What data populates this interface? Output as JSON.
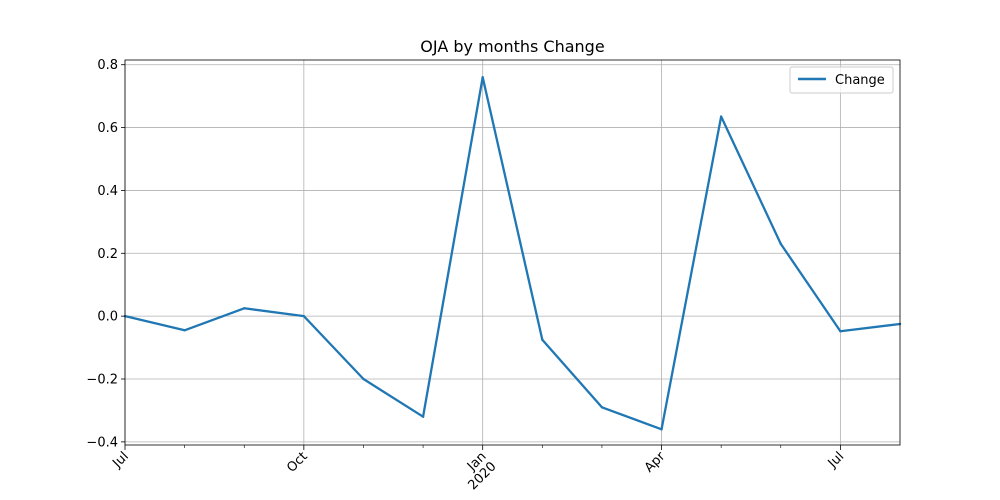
{
  "chart_data": {
    "type": "line",
    "title": "OJA by months Change",
    "xlabel": "",
    "ylabel": "",
    "x": [
      "2019-07",
      "2019-08",
      "2019-09",
      "2019-10",
      "2019-11",
      "2019-12",
      "2020-01",
      "2020-02",
      "2020-03",
      "2020-04",
      "2020-05",
      "2020-06",
      "2020-07",
      "2020-08"
    ],
    "series": [
      {
        "name": "Change",
        "color": "#1f77b4",
        "values": [
          0.0,
          -0.045,
          0.025,
          0.0,
          -0.2,
          -0.32,
          0.76,
          -0.075,
          -0.29,
          -0.36,
          0.635,
          0.23,
          -0.048,
          -0.025
        ]
      }
    ],
    "ylim": [
      -0.41,
      0.815
    ],
    "yticks": [
      -0.4,
      -0.2,
      0.0,
      0.2,
      0.4,
      0.6,
      0.8
    ],
    "ytick_labels": [
      "−0.4",
      "−0.2",
      "0.0",
      "0.2",
      "0.4",
      "0.6",
      "0.8"
    ],
    "xtick_major": [
      {
        "x": "2019-07",
        "label": "Jul",
        "label2": ""
      },
      {
        "x": "2019-10",
        "label": "Oct",
        "label2": ""
      },
      {
        "x": "2020-01",
        "label": "Jan",
        "label2": "2020"
      },
      {
        "x": "2020-04",
        "label": "Apr",
        "label2": ""
      },
      {
        "x": "2020-07",
        "label": "Jul",
        "label2": ""
      }
    ],
    "xtick_minor": [
      "2019-08",
      "2019-09",
      "2019-11",
      "2019-12",
      "2020-02",
      "2020-03",
      "2020-05",
      "2020-06"
    ],
    "grid": true,
    "legend_position": "top-right"
  }
}
